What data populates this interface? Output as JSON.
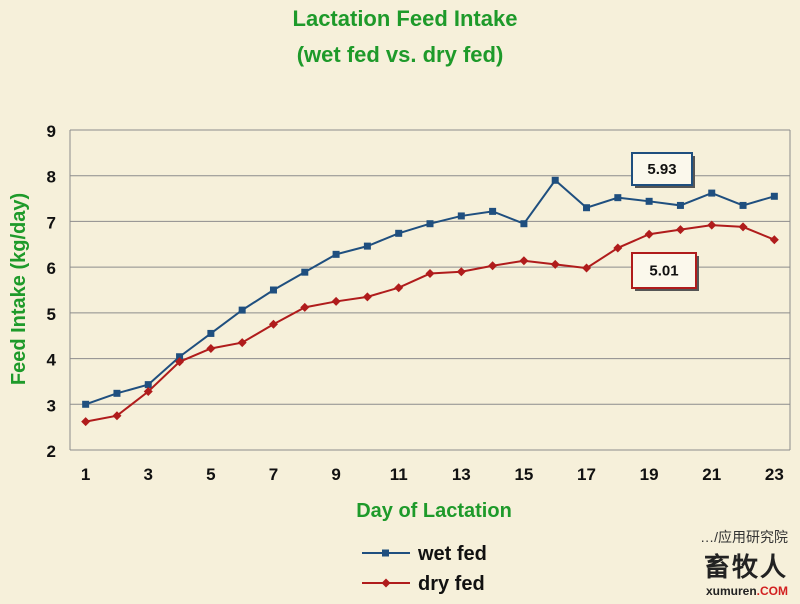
{
  "chart_data": {
    "type": "line",
    "title": "Lactation Feed Intake",
    "subtitle": "(wet fed vs. dry fed)",
    "xlabel": "Day of Lactation",
    "ylabel": "Feed Intake (kg/day)",
    "xlim": [
      0.5,
      23.5
    ],
    "ylim": [
      2,
      9
    ],
    "x_ticks": [
      1,
      3,
      5,
      7,
      9,
      11,
      13,
      15,
      17,
      19,
      21,
      23
    ],
    "y_ticks": [
      2,
      3,
      4,
      5,
      6,
      7,
      8,
      9
    ],
    "grid": true,
    "legend_position": "bottom-center",
    "x": [
      1,
      2,
      3,
      4,
      5,
      6,
      7,
      8,
      9,
      10,
      11,
      12,
      13,
      14,
      15,
      16,
      17,
      18,
      19,
      20,
      21,
      22,
      23
    ],
    "series": [
      {
        "name": "wet fed",
        "color": "#1f4f7f",
        "marker": "square",
        "values": [
          3.0,
          3.24,
          3.43,
          4.04,
          4.55,
          5.06,
          5.5,
          5.89,
          6.28,
          6.46,
          6.74,
          6.95,
          7.12,
          7.22,
          6.95,
          7.9,
          7.3,
          7.52,
          7.44,
          7.35,
          7.62,
          7.35,
          7.55
        ]
      },
      {
        "name": "dry fed",
        "color": "#b01c1c",
        "marker": "diamond",
        "values": [
          2.62,
          2.75,
          3.28,
          3.93,
          4.22,
          4.35,
          4.75,
          5.12,
          5.25,
          5.35,
          5.55,
          5.86,
          5.9,
          6.03,
          6.14,
          6.06,
          5.98,
          6.42,
          6.72,
          6.82,
          6.92,
          6.88,
          6.6
        ]
      }
    ],
    "annotations": [
      {
        "text": "5.93",
        "series": "wet fed",
        "border_color": "#1f4f7f"
      },
      {
        "text": "5.01",
        "series": "dry fed",
        "border_color": "#b01c1c"
      }
    ]
  },
  "watermark": {
    "top": "…/应用研究院",
    "brand": "畜牧人",
    "url": "xumuren",
    "url_suffix": ".COM"
  }
}
